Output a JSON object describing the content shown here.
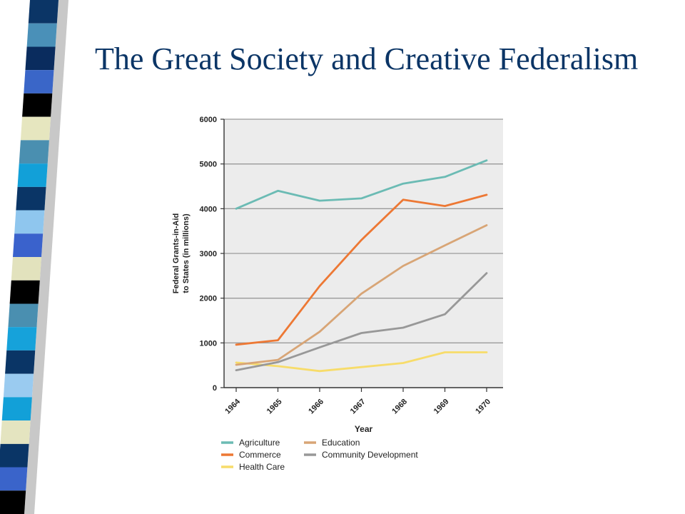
{
  "slide": {
    "title": "The Great Society and Creative Federalism"
  },
  "decoration": {
    "stripe_colors": [
      "#0b3566",
      "#4a90b8",
      "#0a2c5e",
      "#3a66c8",
      "#000000",
      "#e6e6bf",
      "#4a8fb0",
      "#12a0d8",
      "#0a3566",
      "#8fc6ee",
      "#3a62cc",
      "#e2e2bd",
      "#000000",
      "#4a8fb0",
      "#16a2da",
      "#0a3566",
      "#9acbf0",
      "#12a0d8",
      "#e4e4c0",
      "#0a3566",
      "#3a64ca",
      "#000000"
    ],
    "shadow_color": "#9a9a9a"
  },
  "chart_data": {
    "type": "line",
    "xlabel": "Year",
    "ylabel": "Federal Grants-in-Aid to States (in millions)",
    "x": [
      "1964",
      "1965",
      "1966",
      "1967",
      "1968",
      "1969",
      "1970"
    ],
    "ylim": [
      0,
      6000
    ],
    "yticks": [
      "0",
      "1000",
      "2000",
      "3000",
      "4000",
      "5000",
      "6000"
    ],
    "grid": true,
    "legend_position": "bottom",
    "plot_background": "#ececec",
    "series": [
      {
        "name": "Agriculture",
        "color": "#6bbbb4",
        "values": [
          4000,
          4400,
          4180,
          4230,
          4560,
          4710,
          5080
        ]
      },
      {
        "name": "Commerce",
        "color": "#ed7834",
        "values": [
          960,
          1060,
          2270,
          3300,
          4200,
          4060,
          4310
        ]
      },
      {
        "name": "Health Care",
        "color": "#f7dc6a",
        "values": [
          560,
          480,
          370,
          460,
          550,
          790,
          790
        ]
      },
      {
        "name": "Education",
        "color": "#d8a576",
        "values": [
          510,
          620,
          1250,
          2100,
          2720,
          3180,
          3630
        ]
      },
      {
        "name": "Community Development",
        "color": "#989898",
        "values": [
          390,
          570,
          900,
          1220,
          1340,
          1640,
          2560
        ]
      }
    ]
  }
}
